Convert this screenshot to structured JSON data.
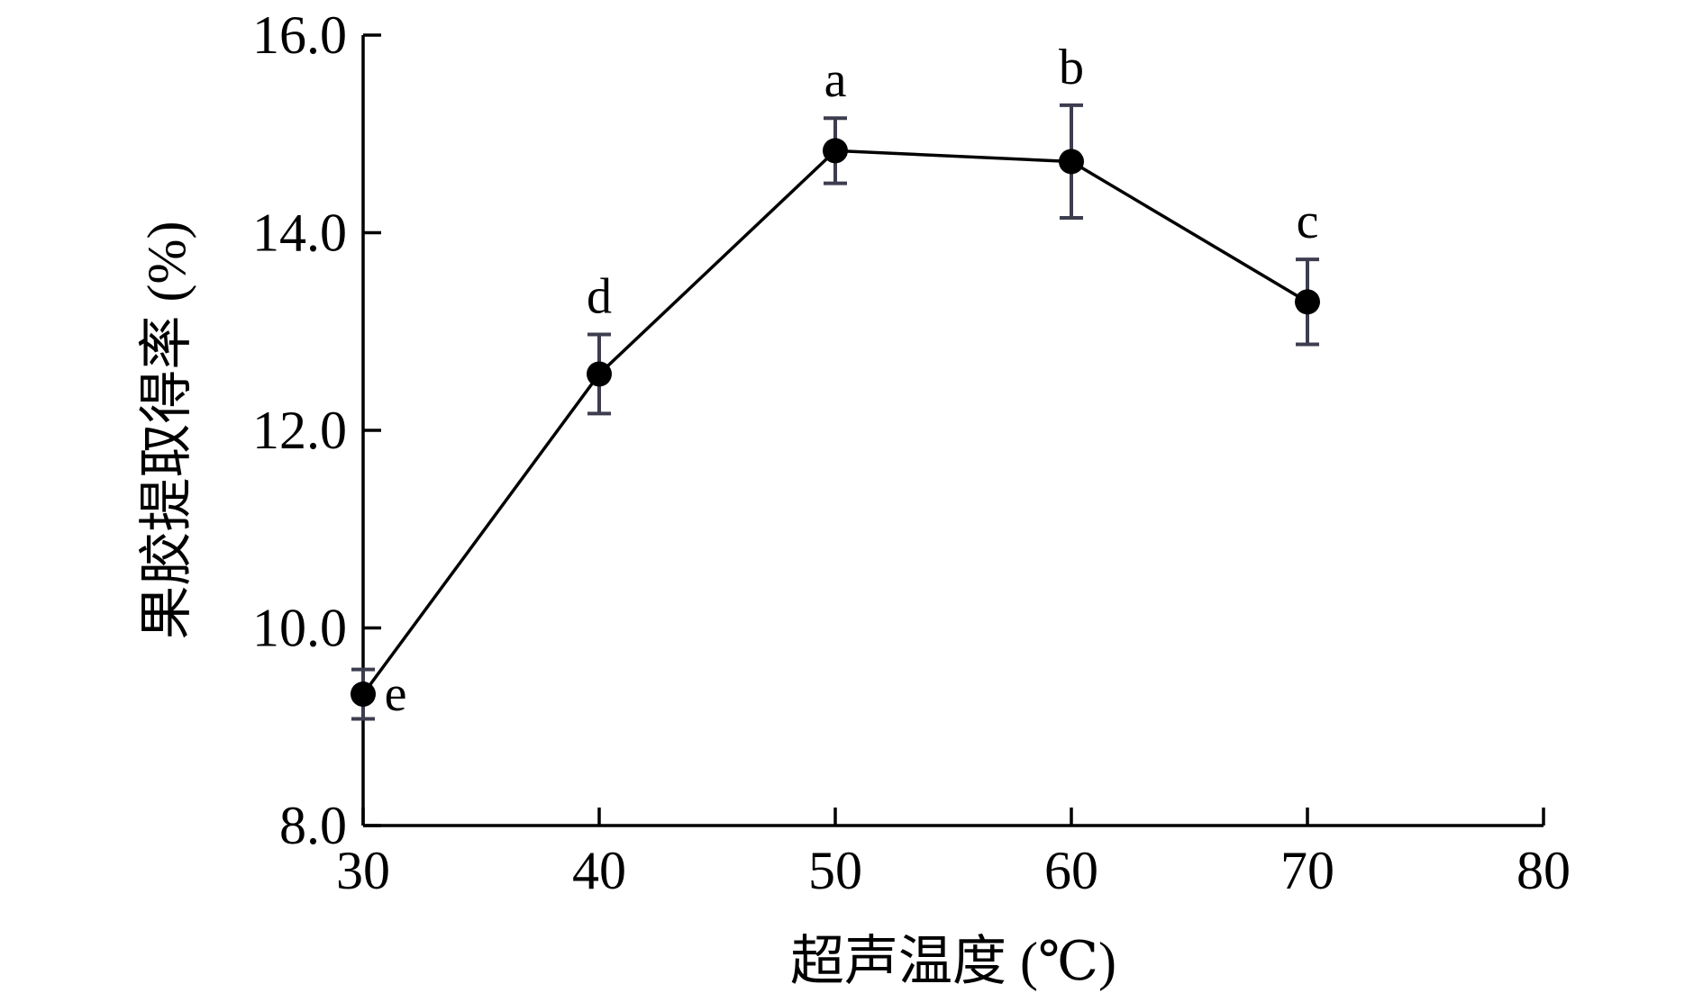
{
  "chart_data": {
    "type": "line",
    "xlabel": "超声温度 (℃)",
    "ylabel": "果胶提取得率 (%)",
    "xlim": [
      30,
      80
    ],
    "ylim": [
      8.0,
      16.0
    ],
    "x_ticks": [
      "30",
      "40",
      "50",
      "60",
      "70",
      "80"
    ],
    "y_ticks": [
      "8.0",
      "10.0",
      "12.0",
      "14.0",
      "16.0"
    ],
    "grid": false,
    "series": [
      {
        "x": [
          30,
          40,
          50,
          60,
          70
        ],
        "values": [
          9.33,
          12.57,
          14.83,
          14.72,
          13.3
        ],
        "error": [
          0.25,
          0.4,
          0.33,
          0.57,
          0.43
        ],
        "labels": [
          "e",
          "d",
          "a",
          "b",
          "c"
        ]
      }
    ],
    "colors": {
      "line": "#000000",
      "marker": "#000000",
      "error_bar": "#3d3d4f"
    }
  }
}
